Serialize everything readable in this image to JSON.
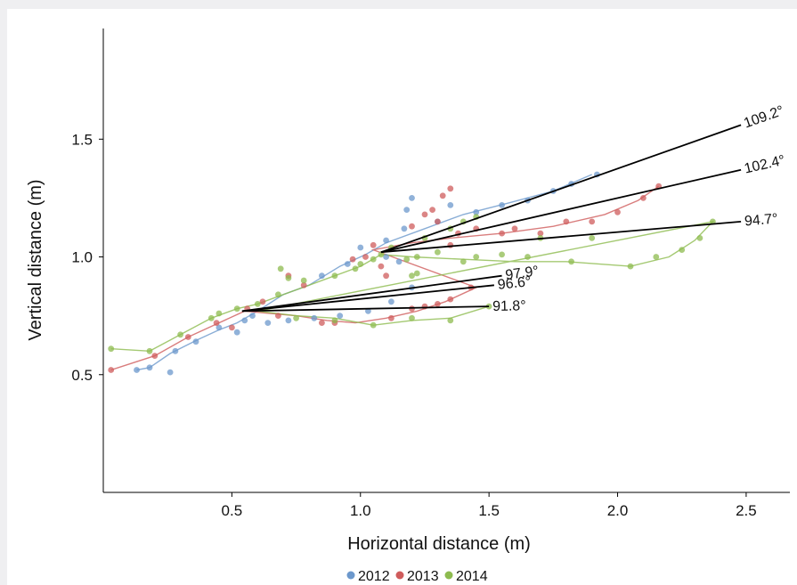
{
  "chart_data": {
    "type": "scatter",
    "xlabel": "Horizontal distance (m)",
    "ylabel": "Vertical distance (m)",
    "xlim": [
      0,
      2.67
    ],
    "ylim": [
      0,
      1.97
    ],
    "xticks": [
      0.5,
      1.0,
      1.5,
      2.0,
      2.5
    ],
    "xtick_labels": [
      "0.5",
      "1.0",
      "1.5",
      "2.0",
      "2.5"
    ],
    "yticks": [
      0.5,
      1.0,
      1.5
    ],
    "ytick_labels": [
      "0.5",
      "1.0",
      "1.5"
    ],
    "grid": false,
    "legend_position": "bottom",
    "series": [
      {
        "name": "2012",
        "color": "#6c98cc",
        "line_points": [
          [
            0.13,
            0.52
          ],
          [
            0.18,
            0.53
          ],
          [
            0.26,
            0.59
          ],
          [
            0.37,
            0.65
          ],
          [
            0.45,
            0.69
          ],
          [
            0.52,
            0.72
          ],
          [
            0.6,
            0.77
          ],
          [
            0.7,
            0.84
          ],
          [
            0.8,
            0.88
          ],
          [
            0.92,
            0.96
          ],
          [
            1.02,
            1.01
          ],
          [
            1.1,
            1.06
          ],
          [
            1.25,
            1.12
          ],
          [
            1.4,
            1.18
          ],
          [
            1.58,
            1.23
          ],
          [
            1.75,
            1.28
          ],
          [
            1.9,
            1.35
          ]
        ],
        "scatter_points": [
          [
            0.13,
            0.52
          ],
          [
            0.18,
            0.53
          ],
          [
            0.26,
            0.51
          ],
          [
            0.28,
            0.6
          ],
          [
            0.36,
            0.64
          ],
          [
            0.45,
            0.7
          ],
          [
            0.52,
            0.68
          ],
          [
            0.55,
            0.73
          ],
          [
            0.58,
            0.75
          ],
          [
            0.64,
            0.72
          ],
          [
            0.72,
            0.73
          ],
          [
            0.82,
            0.74
          ],
          [
            0.92,
            0.75
          ],
          [
            1.03,
            0.77
          ],
          [
            1.12,
            0.81
          ],
          [
            1.2,
            0.87
          ],
          [
            0.85,
            0.92
          ],
          [
            0.95,
            0.97
          ],
          [
            1.0,
            1.04
          ],
          [
            1.1,
            1.07
          ],
          [
            1.17,
            1.12
          ],
          [
            1.2,
            1.25
          ],
          [
            1.18,
            1.2
          ],
          [
            1.3,
            1.15
          ],
          [
            1.35,
            1.22
          ],
          [
            1.45,
            1.19
          ],
          [
            1.55,
            1.22
          ],
          [
            1.65,
            1.24
          ],
          [
            1.75,
            1.28
          ],
          [
            1.82,
            1.31
          ],
          [
            1.92,
            1.35
          ],
          [
            1.1,
            1.0
          ],
          [
            1.15,
            0.98
          ]
        ]
      },
      {
        "name": "2013",
        "color": "#cf5c5c",
        "line_points": [
          [
            0.03,
            0.52
          ],
          [
            0.2,
            0.58
          ],
          [
            0.33,
            0.66
          ],
          [
            0.45,
            0.72
          ],
          [
            0.55,
            0.77
          ],
          [
            0.65,
            0.76
          ],
          [
            0.75,
            0.75
          ],
          [
            0.87,
            0.73
          ],
          [
            0.98,
            0.72
          ],
          [
            1.1,
            0.74
          ],
          [
            1.22,
            0.77
          ],
          [
            1.33,
            0.81
          ],
          [
            1.45,
            0.87
          ],
          [
            1.05,
            1.03
          ],
          [
            1.2,
            1.06
          ],
          [
            1.35,
            1.08
          ],
          [
            1.55,
            1.1
          ],
          [
            1.75,
            1.13
          ],
          [
            1.95,
            1.18
          ],
          [
            2.08,
            1.24
          ],
          [
            2.16,
            1.3
          ]
        ],
        "scatter_points": [
          [
            0.03,
            0.52
          ],
          [
            0.2,
            0.58
          ],
          [
            0.33,
            0.66
          ],
          [
            0.44,
            0.72
          ],
          [
            0.5,
            0.7
          ],
          [
            0.56,
            0.78
          ],
          [
            0.62,
            0.81
          ],
          [
            0.68,
            0.75
          ],
          [
            0.72,
            0.92
          ],
          [
            0.78,
            0.88
          ],
          [
            0.85,
            0.72
          ],
          [
            0.9,
            0.72
          ],
          [
            0.97,
            0.99
          ],
          [
            1.02,
            1.0
          ],
          [
            1.05,
            1.05
          ],
          [
            1.08,
            0.96
          ],
          [
            1.1,
            0.92
          ],
          [
            1.12,
            0.74
          ],
          [
            1.2,
            0.78
          ],
          [
            1.25,
            0.79
          ],
          [
            1.3,
            0.8
          ],
          [
            1.35,
            0.82
          ],
          [
            1.43,
            0.87
          ],
          [
            1.2,
            1.13
          ],
          [
            1.25,
            1.18
          ],
          [
            1.28,
            1.2
          ],
          [
            1.32,
            1.26
          ],
          [
            1.35,
            1.29
          ],
          [
            1.3,
            1.15
          ],
          [
            1.38,
            1.1
          ],
          [
            1.45,
            1.12
          ],
          [
            1.55,
            1.1
          ],
          [
            1.6,
            1.12
          ],
          [
            1.7,
            1.1
          ],
          [
            1.8,
            1.15
          ],
          [
            1.9,
            1.15
          ],
          [
            2.0,
            1.19
          ],
          [
            2.1,
            1.25
          ],
          [
            2.16,
            1.3
          ],
          [
            1.35,
            1.05
          ]
        ]
      },
      {
        "name": "2014",
        "color": "#8dbb4f",
        "line_points": [
          [
            0.03,
            0.61
          ],
          [
            0.18,
            0.6
          ],
          [
            0.3,
            0.67
          ],
          [
            0.42,
            0.74
          ],
          [
            0.52,
            0.78
          ],
          [
            0.6,
            0.8
          ],
          [
            0.7,
            0.84
          ],
          [
            0.8,
            0.88
          ],
          [
            0.9,
            0.92
          ],
          [
            1.0,
            0.96
          ],
          [
            1.08,
            1.01
          ],
          [
            1.2,
            1.0
          ],
          [
            1.4,
            0.99
          ],
          [
            1.6,
            0.98
          ],
          [
            1.8,
            0.98
          ],
          [
            2.05,
            0.96
          ],
          [
            2.2,
            1.0
          ],
          [
            2.3,
            1.07
          ],
          [
            2.37,
            1.15
          ],
          [
            0.6,
            0.77
          ],
          [
            0.75,
            0.75
          ],
          [
            0.9,
            0.74
          ],
          [
            1.05,
            0.71
          ],
          [
            1.2,
            0.73
          ],
          [
            1.35,
            0.74
          ],
          [
            1.5,
            0.79
          ]
        ],
        "scatter_points": [
          [
            0.03,
            0.61
          ],
          [
            0.18,
            0.6
          ],
          [
            0.3,
            0.67
          ],
          [
            0.42,
            0.74
          ],
          [
            0.45,
            0.76
          ],
          [
            0.52,
            0.78
          ],
          [
            0.6,
            0.8
          ],
          [
            0.68,
            0.84
          ],
          [
            0.69,
            0.95
          ],
          [
            0.72,
            0.91
          ],
          [
            0.78,
            0.9
          ],
          [
            0.9,
            0.92
          ],
          [
            0.98,
            0.95
          ],
          [
            1.0,
            0.97
          ],
          [
            1.05,
            0.99
          ],
          [
            1.08,
            1.01
          ],
          [
            1.12,
            1.04
          ],
          [
            1.18,
            0.99
          ],
          [
            1.2,
            0.92
          ],
          [
            1.22,
            0.93
          ],
          [
            1.25,
            1.08
          ],
          [
            1.35,
            1.12
          ],
          [
            1.4,
            1.15
          ],
          [
            1.45,
            1.17
          ],
          [
            1.3,
            1.02
          ],
          [
            1.45,
            1.0
          ],
          [
            1.55,
            1.01
          ],
          [
            1.65,
            1.0
          ],
          [
            1.7,
            1.08
          ],
          [
            1.82,
            0.98
          ],
          [
            1.9,
            1.08
          ],
          [
            2.05,
            0.96
          ],
          [
            2.15,
            1.0
          ],
          [
            2.25,
            1.03
          ],
          [
            2.32,
            1.08
          ],
          [
            2.37,
            1.15
          ],
          [
            0.75,
            0.74
          ],
          [
            0.9,
            0.73
          ],
          [
            1.05,
            0.71
          ],
          [
            1.2,
            0.74
          ],
          [
            1.35,
            0.73
          ],
          [
            1.5,
            0.79
          ],
          [
            1.4,
            0.98
          ],
          [
            1.22,
            1.0
          ]
        ]
      }
    ],
    "annotations": [
      {
        "label": "109.2°",
        "from": [
          1.08,
          1.02
        ],
        "to": [
          2.48,
          1.56
        ]
      },
      {
        "label": "102.4°",
        "from": [
          1.08,
          1.02
        ],
        "to": [
          2.48,
          1.37
        ]
      },
      {
        "label": "94.7°",
        "from": [
          1.08,
          1.02
        ],
        "to": [
          2.48,
          1.15
        ]
      },
      {
        "label": "97.9°",
        "from": [
          0.54,
          0.77
        ],
        "to": [
          1.55,
          0.92
        ]
      },
      {
        "label": "96.6°",
        "from": [
          0.54,
          0.77
        ],
        "to": [
          1.52,
          0.88
        ]
      },
      {
        "label": "91.8°",
        "from": [
          0.54,
          0.77
        ],
        "to": [
          1.5,
          0.79
        ]
      }
    ]
  }
}
